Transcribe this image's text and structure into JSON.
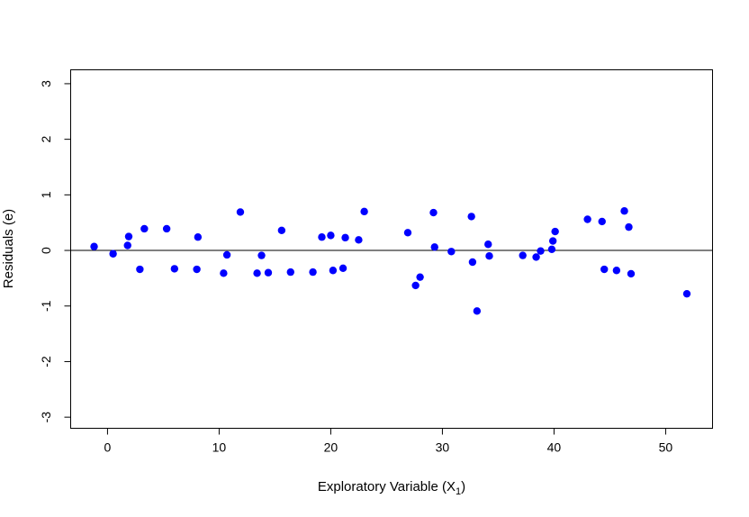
{
  "chart_data": {
    "type": "scatter",
    "title": "",
    "xlabel": "Exploratory Variable (X",
    "xlabel_subscript": "1",
    "xlabel_suffix": ")",
    "ylabel": "Residuals (e)",
    "xlim": [
      -3.3,
      54.2
    ],
    "ylim": [
      -3.2,
      3.25
    ],
    "x_ticks": [
      0,
      10,
      20,
      30,
      40,
      50
    ],
    "x_tick_labels": [
      "0",
      "10",
      "20",
      "30",
      "40",
      "50"
    ],
    "y_ticks": [
      -3,
      -2,
      -1,
      0,
      1,
      2,
      3
    ],
    "y_tick_labels": [
      "-3",
      "-2",
      "-1",
      "0",
      "1",
      "2",
      "3"
    ],
    "reference_line_y": 0,
    "grid": false,
    "point_color": "#0000ff",
    "points": [
      {
        "x": -1.2,
        "y": 0.07
      },
      {
        "x": 0.5,
        "y": -0.06
      },
      {
        "x": 1.8,
        "y": 0.09
      },
      {
        "x": 1.9,
        "y": 0.25
      },
      {
        "x": 2.9,
        "y": -0.34
      },
      {
        "x": 3.3,
        "y": 0.39
      },
      {
        "x": 5.3,
        "y": 0.39
      },
      {
        "x": 6.0,
        "y": -0.33
      },
      {
        "x": 8.0,
        "y": -0.34
      },
      {
        "x": 8.1,
        "y": 0.24
      },
      {
        "x": 10.4,
        "y": -0.41
      },
      {
        "x": 10.7,
        "y": -0.08
      },
      {
        "x": 11.9,
        "y": 0.69
      },
      {
        "x": 13.4,
        "y": -0.41
      },
      {
        "x": 13.8,
        "y": -0.09
      },
      {
        "x": 14.4,
        "y": -0.4
      },
      {
        "x": 15.6,
        "y": 0.36
      },
      {
        "x": 16.4,
        "y": -0.39
      },
      {
        "x": 18.4,
        "y": -0.39
      },
      {
        "x": 19.2,
        "y": 0.24
      },
      {
        "x": 20.0,
        "y": 0.27
      },
      {
        "x": 20.2,
        "y": -0.36
      },
      {
        "x": 21.1,
        "y": -0.32
      },
      {
        "x": 21.3,
        "y": 0.23
      },
      {
        "x": 22.5,
        "y": 0.19
      },
      {
        "x": 23.0,
        "y": 0.7
      },
      {
        "x": 26.9,
        "y": 0.32
      },
      {
        "x": 27.6,
        "y": -0.63
      },
      {
        "x": 28.0,
        "y": -0.48
      },
      {
        "x": 29.2,
        "y": 0.68
      },
      {
        "x": 29.3,
        "y": 0.06
      },
      {
        "x": 30.8,
        "y": -0.02
      },
      {
        "x": 32.6,
        "y": 0.61
      },
      {
        "x": 32.7,
        "y": -0.21
      },
      {
        "x": 33.1,
        "y": -1.09
      },
      {
        "x": 34.1,
        "y": 0.11
      },
      {
        "x": 34.2,
        "y": -0.1
      },
      {
        "x": 37.2,
        "y": -0.09
      },
      {
        "x": 38.4,
        "y": -0.12
      },
      {
        "x": 38.8,
        "y": -0.01
      },
      {
        "x": 39.8,
        "y": 0.02
      },
      {
        "x": 39.9,
        "y": 0.17
      },
      {
        "x": 40.1,
        "y": 0.34
      },
      {
        "x": 43.0,
        "y": 0.56
      },
      {
        "x": 44.3,
        "y": 0.52
      },
      {
        "x": 44.5,
        "y": -0.34
      },
      {
        "x": 45.6,
        "y": -0.36
      },
      {
        "x": 46.3,
        "y": 0.71
      },
      {
        "x": 46.7,
        "y": 0.42
      },
      {
        "x": 46.9,
        "y": -0.42
      },
      {
        "x": 51.9,
        "y": -0.78
      }
    ]
  }
}
